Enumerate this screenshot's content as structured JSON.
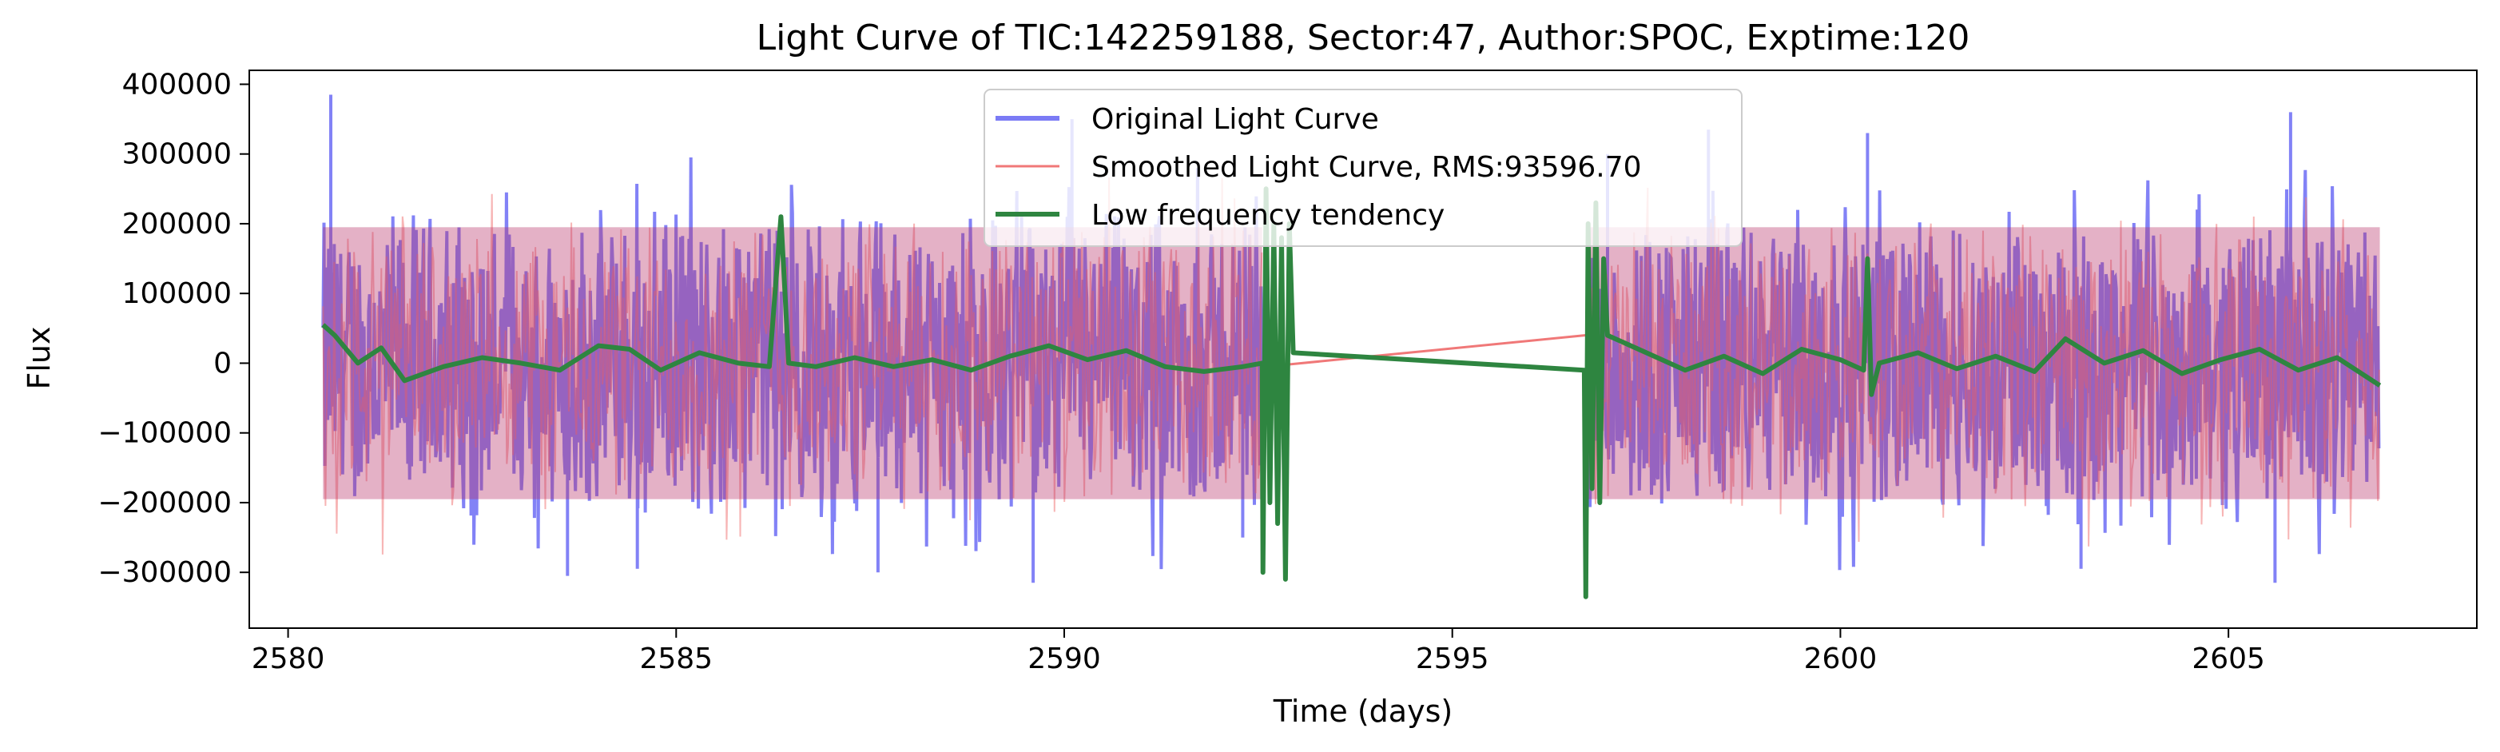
{
  "chart_data": {
    "type": "line",
    "title": "Light Curve of TIC:142259188, Sector:47, Author:SPOC, Exptime:120",
    "xlabel": "Time (days)",
    "ylabel": "Flux",
    "xlim": [
      2579.5,
      2608.2
    ],
    "ylim": [
      -380000,
      420000
    ],
    "xticks": [
      2580,
      2585,
      2590,
      2595,
      2600,
      2605
    ],
    "xtick_labels": [
      "2580",
      "2585",
      "2590",
      "2595",
      "2600",
      "2605"
    ],
    "yticks": [
      -300000,
      -200000,
      -100000,
      0,
      100000,
      200000,
      300000,
      400000
    ],
    "ytick_labels": [
      "−300000",
      "−200000",
      "−100000",
      "0",
      "100000",
      "200000",
      "300000",
      "400000"
    ],
    "grid": false,
    "legend_position": "upper center",
    "segments": [
      {
        "start": 2580.45,
        "end": 2592.55,
        "noise_amplitude": 250000
      },
      {
        "start": 2596.75,
        "end": 2606.95,
        "noise_amplitude": 250000
      }
    ],
    "gap": {
      "start": 2592.55,
      "end": 2596.75
    },
    "series": [
      {
        "name": "Original Light Curve",
        "color": "#7b7bf5",
        "kind": "noise",
        "peaks": [
          [
            2580.55,
            385000
          ],
          [
            2586.3,
            190000
          ],
          [
            2590.1,
            350000
          ],
          [
            2597.0,
            300000
          ],
          [
            2598.3,
            335000
          ],
          [
            2600.35,
            330000
          ],
          [
            2605.8,
            360000
          ],
          [
            2583.6,
            -305000
          ],
          [
            2584.5,
            -295000
          ],
          [
            2587.6,
            -300000
          ],
          [
            2589.6,
            -315000
          ],
          [
            2592.3,
            -250000
          ],
          [
            2603.1,
            -295000
          ],
          [
            2605.6,
            -315000
          ]
        ]
      },
      {
        "name": "Smoothed Light Curve, RMS:93596.70",
        "color": "#f07878",
        "kind": "noise",
        "gap_line": [
          [
            2592.6,
            -5000
          ],
          [
            2596.9,
            42000
          ]
        ]
      },
      {
        "name": "Low frequency tendency",
        "color": "#2e8540",
        "kind": "trend",
        "points": [
          [
            2580.45,
            55000
          ],
          [
            2580.6,
            40000
          ],
          [
            2580.9,
            0
          ],
          [
            2581.2,
            22000
          ],
          [
            2581.5,
            -25000
          ],
          [
            2582.0,
            -5000
          ],
          [
            2582.5,
            8000
          ],
          [
            2583.0,
            0
          ],
          [
            2583.5,
            -10000
          ],
          [
            2584.0,
            25000
          ],
          [
            2584.4,
            20000
          ],
          [
            2584.8,
            -10000
          ],
          [
            2585.3,
            15000
          ],
          [
            2585.8,
            0
          ],
          [
            2586.2,
            -5000
          ],
          [
            2586.35,
            210000
          ],
          [
            2586.45,
            0
          ],
          [
            2586.8,
            -5000
          ],
          [
            2587.3,
            8000
          ],
          [
            2587.8,
            -5000
          ],
          [
            2588.3,
            5000
          ],
          [
            2588.8,
            -10000
          ],
          [
            2589.3,
            10000
          ],
          [
            2589.8,
            25000
          ],
          [
            2590.3,
            5000
          ],
          [
            2590.8,
            18000
          ],
          [
            2591.3,
            -5000
          ],
          [
            2591.8,
            -12000
          ],
          [
            2592.3,
            -5000
          ],
          [
            2592.55,
            0
          ],
          [
            2592.56,
            -300000
          ],
          [
            2592.6,
            250000
          ],
          [
            2592.65,
            -200000
          ],
          [
            2592.7,
            200000
          ],
          [
            2592.75,
            -230000
          ],
          [
            2592.8,
            180000
          ],
          [
            2592.85,
            -310000
          ],
          [
            2592.9,
            200000
          ],
          [
            2592.95,
            15000
          ],
          [
            2596.7,
            -10000
          ],
          [
            2596.72,
            -335000
          ],
          [
            2596.75,
            200000
          ],
          [
            2596.8,
            -180000
          ],
          [
            2596.85,
            230000
          ],
          [
            2596.9,
            -200000
          ],
          [
            2596.95,
            150000
          ],
          [
            2597.0,
            40000
          ],
          [
            2597.5,
            15000
          ],
          [
            2598.0,
            -10000
          ],
          [
            2598.5,
            10000
          ],
          [
            2599.0,
            -15000
          ],
          [
            2599.5,
            20000
          ],
          [
            2600.0,
            5000
          ],
          [
            2600.3,
            -10000
          ],
          [
            2600.35,
            150000
          ],
          [
            2600.4,
            -45000
          ],
          [
            2600.5,
            0
          ],
          [
            2601.0,
            15000
          ],
          [
            2601.5,
            -8000
          ],
          [
            2602.0,
            10000
          ],
          [
            2602.5,
            -12000
          ],
          [
            2602.9,
            35000
          ],
          [
            2603.4,
            0
          ],
          [
            2603.9,
            18000
          ],
          [
            2604.4,
            -15000
          ],
          [
            2604.9,
            5000
          ],
          [
            2605.4,
            20000
          ],
          [
            2605.9,
            -10000
          ],
          [
            2606.4,
            8000
          ],
          [
            2606.95,
            -32000
          ]
        ]
      }
    ]
  }
}
